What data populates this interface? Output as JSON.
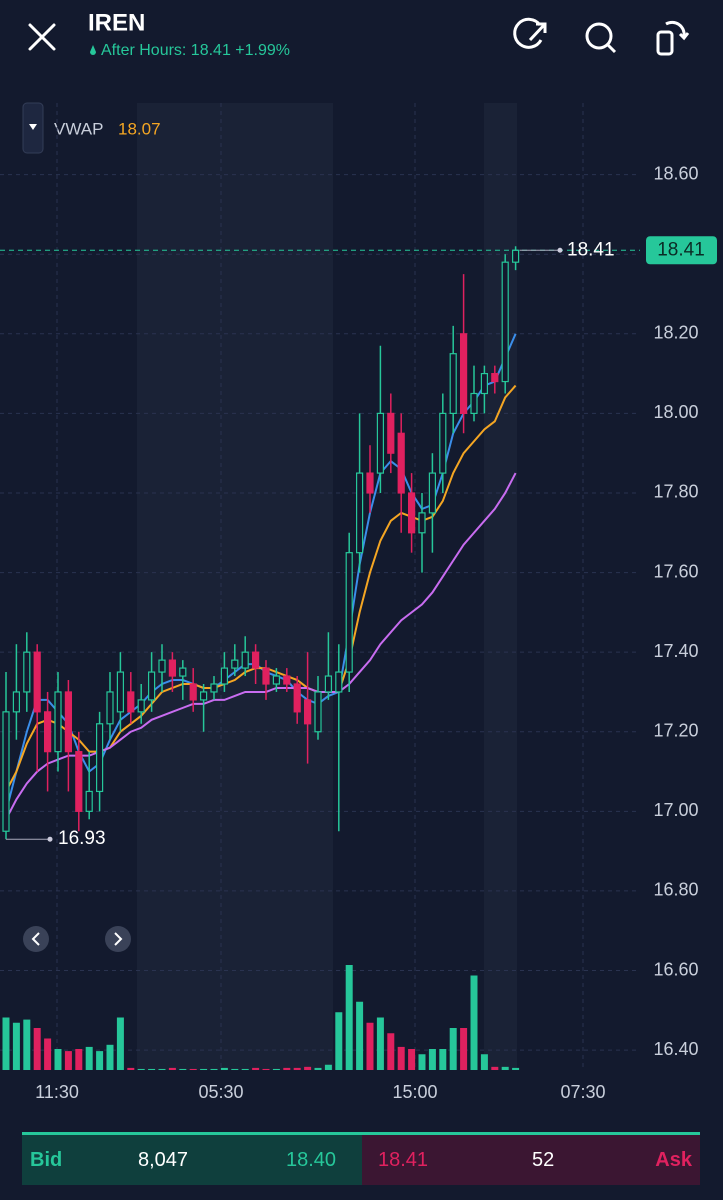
{
  "header": {
    "symbol": "IREN",
    "session": "After Hours: 18.41 +1.99%",
    "indicator": "VWAP",
    "indicator_value": "18.07"
  },
  "chart_data": {
    "type": "candlestick",
    "ylim": [
      16.35,
      18.78
    ],
    "yticks": [
      {
        "value": 18.6,
        "label": "18.60"
      },
      {
        "value": 18.4,
        "label": "18.40"
      },
      {
        "value": 18.2,
        "label": "18.20"
      },
      {
        "value": 18.0,
        "label": "18.00"
      },
      {
        "value": 17.8,
        "label": "17.80"
      },
      {
        "value": 17.6,
        "label": "17.60"
      },
      {
        "value": 17.4,
        "label": "17.40"
      },
      {
        "value": 17.2,
        "label": "17.20"
      },
      {
        "value": 17.0,
        "label": "17.00"
      },
      {
        "value": 16.8,
        "label": "16.80"
      },
      {
        "value": 16.6,
        "label": "16.60"
      },
      {
        "value": 16.4,
        "label": "16.40"
      }
    ],
    "x_labels": [
      "11:30",
      "05:30",
      "15:00",
      "07:30"
    ],
    "grid": true,
    "up_color": "#26c79a",
    "down_color": "#e0215f",
    "open": [
      16.95,
      17.25,
      17.3,
      17.4,
      17.25,
      17.15,
      17.3,
      17.15,
      17.0,
      17.05,
      17.22,
      17.25,
      17.3,
      17.25,
      17.28,
      17.35,
      17.38,
      17.34,
      17.32,
      17.28,
      17.3,
      17.32,
      17.36,
      17.36,
      17.4,
      17.36,
      17.32,
      17.34,
      17.32,
      17.28,
      17.2,
      17.3,
      17.3,
      17.35,
      17.65,
      17.85,
      17.85,
      18.0,
      17.95,
      17.8,
      17.7,
      17.75,
      17.85,
      18.0,
      18.2,
      18.0,
      18.05,
      18.1,
      18.08,
      18.38
    ],
    "high": [
      17.35,
      17.42,
      17.45,
      17.42,
      17.3,
      17.35,
      17.33,
      17.2,
      17.15,
      17.25,
      17.35,
      17.4,
      17.35,
      17.32,
      17.4,
      17.42,
      17.4,
      17.38,
      17.36,
      17.32,
      17.34,
      17.4,
      17.42,
      17.44,
      17.42,
      17.38,
      17.36,
      17.36,
      17.34,
      17.4,
      17.34,
      17.45,
      17.42,
      17.7,
      18.0,
      17.92,
      18.17,
      18.05,
      18.0,
      17.85,
      17.8,
      17.9,
      18.05,
      18.22,
      18.35,
      18.12,
      18.12,
      18.12,
      18.4,
      18.42
    ],
    "low": [
      16.93,
      17.18,
      17.25,
      17.1,
      17.05,
      17.1,
      17.05,
      16.95,
      16.98,
      17.0,
      17.18,
      17.2,
      17.22,
      17.22,
      17.25,
      17.3,
      17.3,
      17.28,
      17.25,
      17.2,
      17.28,
      17.3,
      17.34,
      17.34,
      17.32,
      17.28,
      17.3,
      17.3,
      17.22,
      17.12,
      17.18,
      17.28,
      16.95,
      17.3,
      17.6,
      17.75,
      17.8,
      17.85,
      17.7,
      17.65,
      17.6,
      17.65,
      17.8,
      17.95,
      17.95,
      17.98,
      18.0,
      18.05,
      18.05,
      18.36
    ],
    "close": [
      17.25,
      17.3,
      17.4,
      17.25,
      17.15,
      17.3,
      17.15,
      17.0,
      17.05,
      17.22,
      17.3,
      17.35,
      17.25,
      17.28,
      17.35,
      17.38,
      17.34,
      17.36,
      17.28,
      17.3,
      17.32,
      17.36,
      17.38,
      17.4,
      17.36,
      17.32,
      17.34,
      17.32,
      17.25,
      17.22,
      17.3,
      17.34,
      17.35,
      17.65,
      17.85,
      17.8,
      18.0,
      17.9,
      17.8,
      17.7,
      17.75,
      17.85,
      18.0,
      18.15,
      18.0,
      18.05,
      18.1,
      18.08,
      18.38,
      18.41
    ],
    "volume": [
      50,
      45,
      48,
      40,
      30,
      20,
      18,
      20,
      22,
      18,
      24,
      50,
      2,
      1,
      1,
      1,
      2,
      1,
      1,
      1,
      1,
      2,
      1,
      1,
      2,
      1,
      1,
      2,
      2,
      3,
      2,
      5,
      55,
      100,
      65,
      45,
      50,
      35,
      22,
      20,
      15,
      20,
      20,
      40,
      40,
      90,
      15,
      3,
      3,
      2
    ],
    "series": [
      {
        "color": "#3b8eea",
        "values": [
          17.0,
          17.1,
          17.2,
          17.28,
          17.28,
          17.25,
          17.22,
          17.15,
          17.1,
          17.12,
          17.18,
          17.23,
          17.25,
          17.27,
          17.3,
          17.32,
          17.33,
          17.33,
          17.32,
          17.31,
          17.31,
          17.33,
          17.35,
          17.37,
          17.37,
          17.35,
          17.34,
          17.33,
          17.3,
          17.28,
          17.27,
          17.29,
          17.3,
          17.45,
          17.62,
          17.75,
          17.85,
          17.88,
          17.86,
          17.8,
          17.76,
          17.77,
          17.85,
          17.95,
          18.0,
          18.03,
          18.07,
          18.08,
          18.14,
          18.2
        ]
      },
      {
        "color": "#f5a623",
        "values": [
          17.05,
          17.1,
          17.17,
          17.22,
          17.23,
          17.22,
          17.2,
          17.18,
          17.15,
          17.15,
          17.16,
          17.2,
          17.22,
          17.24,
          17.27,
          17.3,
          17.31,
          17.32,
          17.32,
          17.31,
          17.31,
          17.32,
          17.33,
          17.35,
          17.36,
          17.36,
          17.35,
          17.34,
          17.33,
          17.31,
          17.3,
          17.3,
          17.3,
          17.38,
          17.5,
          17.6,
          17.68,
          17.73,
          17.75,
          17.74,
          17.73,
          17.74,
          17.78,
          17.85,
          17.9,
          17.93,
          17.96,
          17.98,
          18.04,
          18.07
        ]
      },
      {
        "color": "#c86cf0",
        "values": [
          16.98,
          17.03,
          17.07,
          17.1,
          17.12,
          17.13,
          17.14,
          17.14,
          17.14,
          17.15,
          17.16,
          17.18,
          17.2,
          17.21,
          17.23,
          17.24,
          17.25,
          17.26,
          17.27,
          17.27,
          17.28,
          17.28,
          17.29,
          17.3,
          17.3,
          17.3,
          17.31,
          17.31,
          17.31,
          17.31,
          17.3,
          17.3,
          17.3,
          17.32,
          17.35,
          17.38,
          17.42,
          17.45,
          17.48,
          17.5,
          17.52,
          17.55,
          17.59,
          17.63,
          17.67,
          17.7,
          17.73,
          17.76,
          17.8,
          17.85
        ]
      }
    ],
    "last_price": 18.41,
    "last_price_label": "18.41",
    "low_marker": 16.93,
    "low_marker_label": "16.93"
  },
  "quote": {
    "bid_label": "Bid",
    "bid_size": "8,047",
    "bid_price": "18.40",
    "ask_price": "18.41",
    "ask_size": "52",
    "ask_label": "Ask"
  }
}
